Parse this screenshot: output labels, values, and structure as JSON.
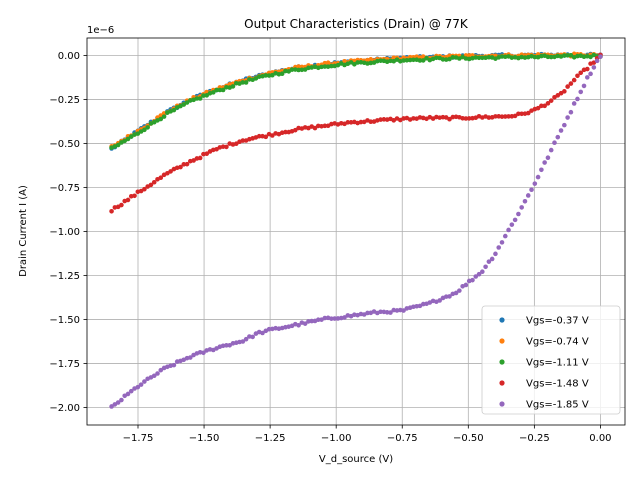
{
  "chart_data": {
    "type": "scatter",
    "title": "Output Characteristics (Drain) @ 77K",
    "xlabel": "V_d_source (V)",
    "ylabel": "Drain Current I (A)",
    "y_offset_label": "1e−6",
    "xlim": [
      -1.943,
      0.093
    ],
    "ylim": [
      -2.1,
      0.1
    ],
    "grid": true,
    "legend_position": "lower-right",
    "x_ticks": [
      -1.75,
      -1.5,
      -1.25,
      -1.0,
      -0.75,
      -0.5,
      -0.25,
      0.0
    ],
    "x_tick_labels": [
      "−1.75",
      "−1.50",
      "−1.25",
      "−1.00",
      "−0.75",
      "−0.50",
      "−0.25",
      "0.00"
    ],
    "y_ticks": [
      0.0,
      -0.25,
      -0.5,
      -0.75,
      -1.0,
      -1.25,
      -1.5,
      -1.75,
      -2.0
    ],
    "y_tick_labels": [
      "0.00",
      "−0.25",
      "−0.50",
      "−0.75",
      "−1.00",
      "−1.25",
      "−1.50",
      "−1.75",
      "−2.00"
    ],
    "x_range": [
      -1.85,
      0.0
    ],
    "n_points_per_series": 150,
    "series": [
      {
        "name": "Vgs=-0.37 V",
        "color": "#1f77b4",
        "x": [
          -1.85,
          -1.75,
          -1.65,
          -1.55,
          -1.45,
          -1.35,
          -1.25,
          -1.15,
          -1.05,
          -0.95,
          -0.85,
          -0.75,
          -0.65,
          -0.55,
          -0.45,
          -0.35,
          -0.25,
          -0.15,
          -0.05,
          0.0
        ],
        "y": [
          -0.53,
          -0.43,
          -0.33,
          -0.25,
          -0.19,
          -0.14,
          -0.1,
          -0.07,
          -0.05,
          -0.035,
          -0.025,
          -0.015,
          -0.01,
          -0.005,
          -0.002,
          0.0,
          0.002,
          0.003,
          0.003,
          0.0
        ]
      },
      {
        "name": "Vgs=-0.74 V",
        "color": "#ff7f0e",
        "x": [
          -1.85,
          -1.75,
          -1.65,
          -1.55,
          -1.45,
          -1.35,
          -1.25,
          -1.15,
          -1.05,
          -0.95,
          -0.85,
          -0.75,
          -0.65,
          -0.55,
          -0.45,
          -0.35,
          -0.25,
          -0.15,
          -0.05,
          0.0
        ],
        "y": [
          -0.52,
          -0.43,
          -0.33,
          -0.25,
          -0.19,
          -0.14,
          -0.1,
          -0.07,
          -0.05,
          -0.035,
          -0.025,
          -0.015,
          -0.01,
          -0.005,
          -0.002,
          0.0,
          0.002,
          0.003,
          0.003,
          0.0
        ]
      },
      {
        "name": "Vgs=-1.11 V",
        "color": "#2ca02c",
        "x": [
          -1.85,
          -1.75,
          -1.65,
          -1.55,
          -1.45,
          -1.35,
          -1.25,
          -1.15,
          -1.05,
          -0.95,
          -0.85,
          -0.75,
          -0.65,
          -0.55,
          -0.45,
          -0.35,
          -0.25,
          -0.15,
          -0.05,
          0.0
        ],
        "y": [
          -0.53,
          -0.44,
          -0.34,
          -0.26,
          -0.2,
          -0.15,
          -0.11,
          -0.08,
          -0.06,
          -0.045,
          -0.035,
          -0.025,
          -0.02,
          -0.015,
          -0.012,
          -0.01,
          -0.008,
          -0.006,
          -0.003,
          0.0
        ]
      },
      {
        "name": "Vgs=-1.48 V",
        "color": "#d62728",
        "x": [
          -1.85,
          -1.75,
          -1.65,
          -1.55,
          -1.45,
          -1.35,
          -1.25,
          -1.15,
          -1.05,
          -0.95,
          -0.85,
          -0.75,
          -0.65,
          -0.55,
          -0.45,
          -0.35,
          -0.3,
          -0.25,
          -0.2,
          -0.15,
          -0.1,
          -0.05,
          0.0
        ],
        "y": [
          -0.88,
          -0.78,
          -0.68,
          -0.6,
          -0.53,
          -0.48,
          -0.45,
          -0.42,
          -0.4,
          -0.38,
          -0.37,
          -0.36,
          -0.355,
          -0.355,
          -0.35,
          -0.345,
          -0.335,
          -0.31,
          -0.27,
          -0.22,
          -0.14,
          -0.07,
          0.0
        ]
      },
      {
        "name": "Vgs=-1.85 V",
        "color": "#9467bd",
        "x": [
          -1.85,
          -1.75,
          -1.65,
          -1.55,
          -1.45,
          -1.35,
          -1.3,
          -1.25,
          -1.15,
          -1.05,
          -0.95,
          -0.85,
          -0.75,
          -0.65,
          -0.55,
          -0.45,
          -0.4,
          -0.35,
          -0.3,
          -0.25,
          -0.2,
          -0.15,
          -0.1,
          -0.05,
          0.0
        ],
        "y": [
          -2.0,
          -1.88,
          -1.78,
          -1.71,
          -1.66,
          -1.62,
          -1.58,
          -1.56,
          -1.53,
          -1.5,
          -1.48,
          -1.46,
          -1.45,
          -1.41,
          -1.35,
          -1.23,
          -1.13,
          -1.0,
          -0.87,
          -0.73,
          -0.58,
          -0.43,
          -0.28,
          -0.13,
          0.0
        ]
      }
    ]
  }
}
